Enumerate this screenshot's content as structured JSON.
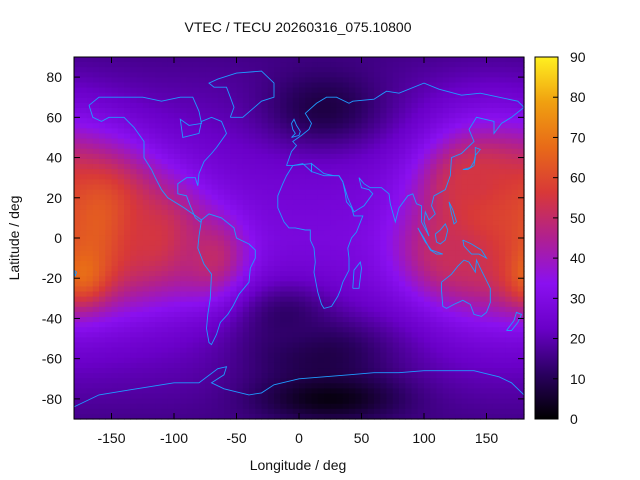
{
  "chart_data": {
    "type": "heatmap",
    "title": "VTEC / TECU 20260316_075.10800",
    "xlabel": "Longitude / deg",
    "ylabel": "Latitude / deg",
    "xlim": [
      -180,
      180
    ],
    "ylim": [
      -90,
      90
    ],
    "x_ticks": [
      -150,
      -100,
      -50,
      0,
      50,
      100,
      150
    ],
    "y_ticks": [
      -80,
      -60,
      -40,
      -20,
      0,
      20,
      40,
      60,
      80
    ],
    "colorbar": {
      "range": [
        0,
        90
      ],
      "ticks": [
        0,
        10,
        20,
        30,
        40,
        50,
        60,
        70,
        80,
        90
      ],
      "palette": [
        "#000000",
        "#2a0060",
        "#6a00c8",
        "#8a10f0",
        "#b02090",
        "#d83838",
        "#e86a18",
        "#f0a010",
        "#fff020"
      ]
    },
    "grid": false,
    "coastline_color": "#1e9bff",
    "features": [
      {
        "lon": -160,
        "lat": 8,
        "value": 70,
        "spread_lon": 32,
        "spread_lat": 24
      },
      {
        "lon": -175,
        "lat": -14,
        "value": 78,
        "spread_lon": 16,
        "spread_lat": 12
      },
      {
        "lon": -115,
        "lat": 0,
        "value": 55,
        "spread_lon": 30,
        "spread_lat": 20
      },
      {
        "lon": -70,
        "lat": -10,
        "value": 50,
        "spread_lon": 20,
        "spread_lat": 14
      },
      {
        "lon": 150,
        "lat": 10,
        "value": 62,
        "spread_lon": 38,
        "spread_lat": 30
      },
      {
        "lon": 140,
        "lat": 28,
        "value": 55,
        "spread_lon": 22,
        "spread_lat": 12
      },
      {
        "lon": 125,
        "lat": -8,
        "value": 52,
        "spread_lon": 28,
        "spread_lat": 14
      },
      {
        "lon": 20,
        "lat": 65,
        "value": 8,
        "spread_lon": 35,
        "spread_lat": 14
      },
      {
        "lon": 15,
        "lat": -58,
        "value": 8,
        "spread_lon": 45,
        "spread_lat": 14
      },
      {
        "lon": 25,
        "lat": -80,
        "value": 2,
        "spread_lon": 40,
        "spread_lat": 8
      },
      {
        "lon": -10,
        "lat": -40,
        "value": 12,
        "spread_lon": 25,
        "spread_lat": 12
      }
    ]
  }
}
